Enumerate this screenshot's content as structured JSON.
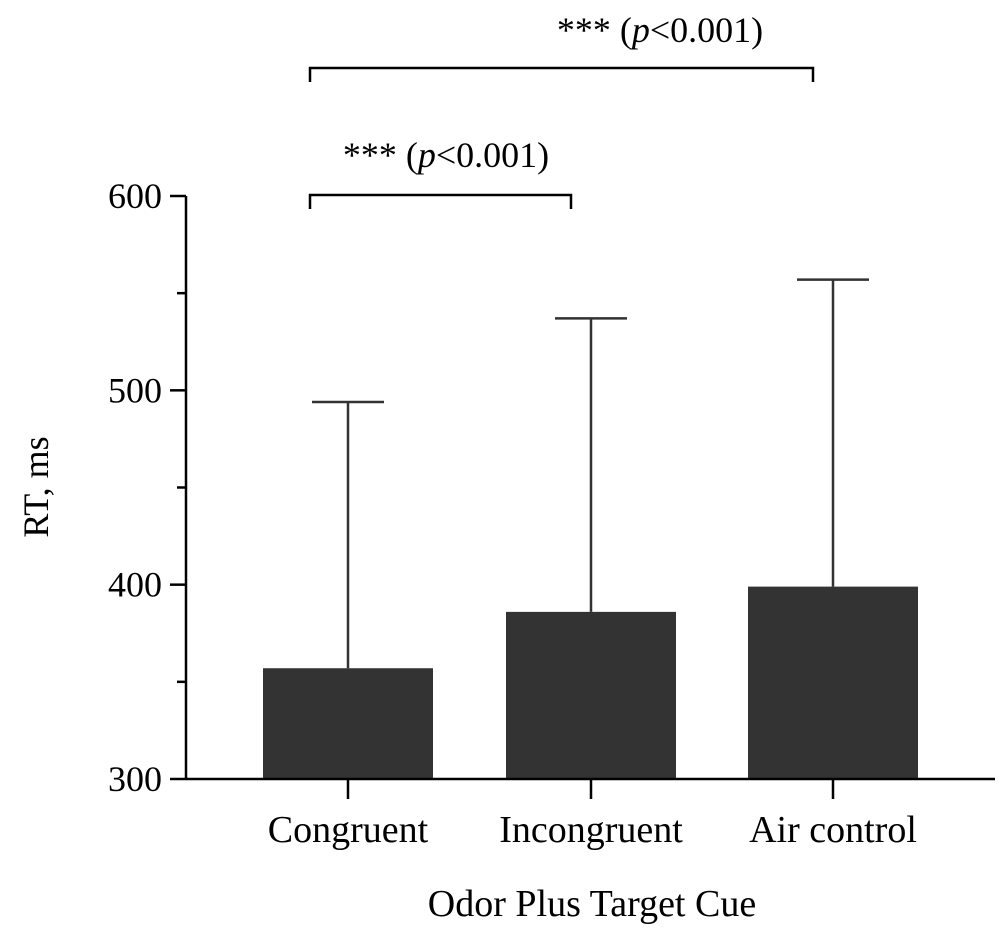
{
  "chart_data": {
    "type": "bar",
    "xlabel": "Odor Plus Target Cue",
    "ylabel": "RT, ms",
    "ylim": [
      300,
      600
    ],
    "yticks": [
      300,
      400,
      500,
      600
    ],
    "yticks_minor": [
      350,
      450,
      550
    ],
    "categories": [
      "Congruent",
      "Incongruent",
      "Air control"
    ],
    "values": [
      357,
      386,
      399
    ],
    "error_upper": [
      494,
      537,
      557
    ],
    "bar_color": "#333333",
    "grid": false,
    "legend": "none",
    "annotations": [
      {
        "stars": "***",
        "p_open": "(",
        "p_italic": "p",
        "p_rest": "<0.001)",
        "from": "Congruent",
        "to": "Incongruent"
      },
      {
        "stars": "***",
        "p_open": "(",
        "p_italic": "p",
        "p_rest": "<0.001)",
        "from": "Congruent",
        "to": "Air control"
      }
    ]
  }
}
